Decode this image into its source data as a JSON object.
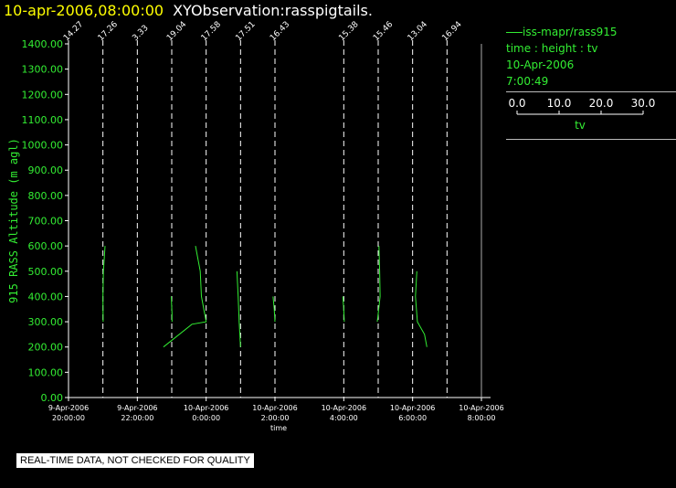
{
  "header": {
    "date_text": "10-apr-2006,08:00:00",
    "observation_text": "XYObservation:rasspigtails."
  },
  "legend": {
    "series_label": "iss-mapr/rass915",
    "type_label": "time : height : tv",
    "date": "10-Apr-2006",
    "time": "7:00:49",
    "scale_ticks": [
      "0.0",
      "10.0",
      "20.0",
      "30.0"
    ],
    "scale_label": "tv"
  },
  "disclaimer": "REAL-TIME DATA, NOT CHECKED FOR QUALITY",
  "colors": {
    "background": "#000000",
    "series": "#33ee33",
    "axis": "#ffffff",
    "title_date": "#ffff00"
  },
  "chart_data": {
    "type": "line",
    "ylabel": "915 RASS Altitude (m agl)",
    "xlabel": "time",
    "ylim": [
      0,
      1400
    ],
    "yticks": [
      "0.00",
      "100.00",
      "200.00",
      "300.00",
      "400.00",
      "500.00",
      "600.00",
      "700.00",
      "800.00",
      "900.00",
      "1000.00",
      "1100.00",
      "1200.00",
      "1300.00",
      "1400.00"
    ],
    "xlim_hours": [
      20,
      32
    ],
    "xticks": [
      {
        "h": 20,
        "date": "9-Apr-2006",
        "time": "20:00:00"
      },
      {
        "h": 22,
        "date": "9-Apr-2006",
        "time": "22:00:00"
      },
      {
        "h": 24,
        "date": "10-Apr-2006",
        "time": "0:00:00"
      },
      {
        "h": 26,
        "date": "10-Apr-2006",
        "time": "2:00:00"
      },
      {
        "h": 28,
        "date": "10-Apr-2006",
        "time": "4:00:00"
      },
      {
        "h": 30,
        "date": "10-Apr-2006",
        "time": "6:00:00"
      },
      {
        "h": 32,
        "date": "10-Apr-2006",
        "time": "8:00:00"
      }
    ],
    "profiles": [
      {
        "h": 20.0,
        "label": "14.27",
        "points": []
      },
      {
        "h": 21.0,
        "label": "17.26",
        "points": [
          [
            0.1,
            300
          ],
          [
            0.0,
            400
          ],
          [
            0.2,
            500
          ],
          [
            0.9,
            600
          ]
        ]
      },
      {
        "h": 22.0,
        "label": "3.33",
        "points": []
      },
      {
        "h": 23.0,
        "label": "19.04",
        "points": [
          [
            -0.2,
            400
          ],
          [
            0.1,
            330
          ],
          [
            0.1,
            300
          ]
        ]
      },
      {
        "h": 24.0,
        "label": "17.58",
        "points": [
          [
            -4.5,
            600
          ],
          [
            -2.5,
            500
          ],
          [
            -2.0,
            400
          ],
          [
            0.0,
            300
          ],
          [
            -6.0,
            290
          ],
          [
            -18.0,
            200
          ]
        ]
      },
      {
        "h": 25.0,
        "label": "17.51",
        "points": [
          [
            -1.5,
            500
          ],
          [
            -1.0,
            400
          ],
          [
            -0.6,
            300
          ],
          [
            0.0,
            200
          ]
        ]
      },
      {
        "h": 26.0,
        "label": "16.43",
        "points": [
          [
            -0.8,
            400
          ],
          [
            -0.3,
            350
          ],
          [
            0.0,
            300
          ]
        ]
      },
      {
        "h": 28.0,
        "label": "15.38",
        "points": [
          [
            -0.4,
            400
          ],
          [
            0.0,
            350
          ],
          [
            0.2,
            300
          ]
        ]
      },
      {
        "h": 29.0,
        "label": "15.46",
        "points": [
          [
            -0.4,
            300
          ],
          [
            0.8,
            400
          ],
          [
            0.6,
            500
          ],
          [
            0.3,
            600
          ]
        ]
      },
      {
        "h": 30.0,
        "label": "13.04",
        "points": [
          [
            1.8,
            500
          ],
          [
            1.2,
            400
          ],
          [
            2.0,
            300
          ],
          [
            5.0,
            250
          ],
          [
            6.0,
            200
          ]
        ]
      },
      {
        "h": 31.0,
        "label": "16.94",
        "points": []
      }
    ]
  }
}
